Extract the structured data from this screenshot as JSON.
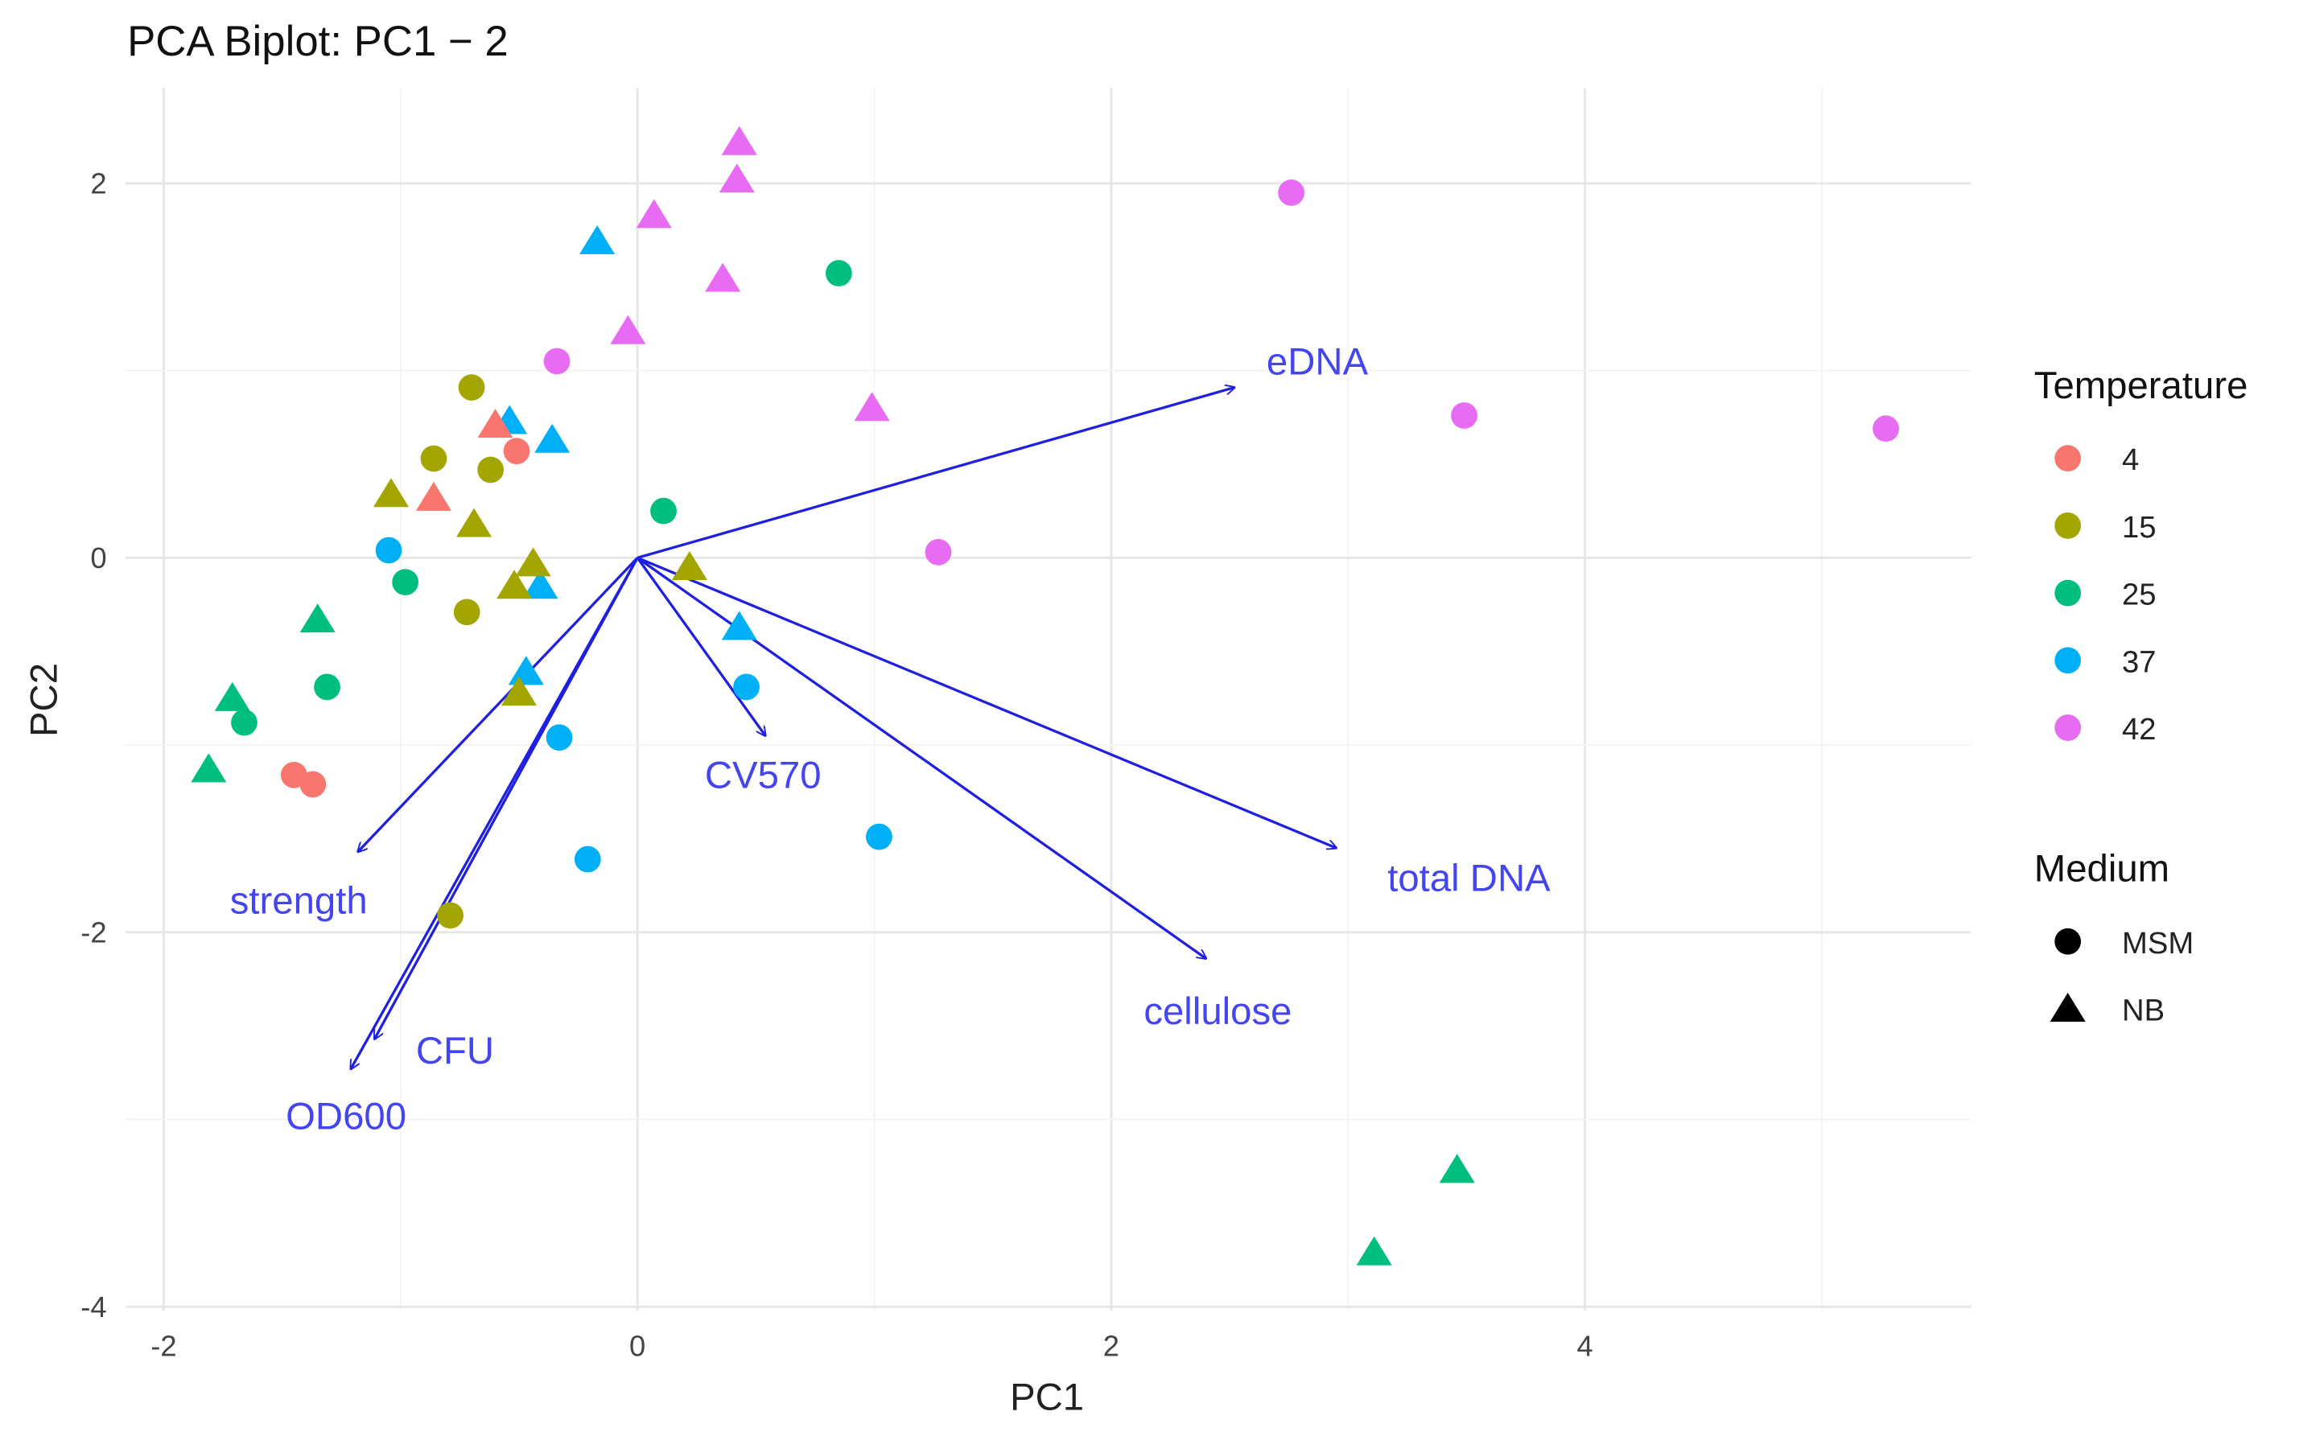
{
  "chart_data": {
    "type": "scatter",
    "title": "PCA Biplot: PC1 − 2",
    "xlabel": "PC1",
    "ylabel": "PC2",
    "xlim": [
      -2.16,
      5.63
    ],
    "ylim": [
      -4.02,
      2.51
    ],
    "xticks": [
      -2,
      0,
      2,
      4
    ],
    "yticks": [
      -4,
      -2,
      0,
      2
    ],
    "grid": true,
    "legend": {
      "placement": "right",
      "color_title": "Temperature",
      "color_entries": [
        {
          "label": "4",
          "color": "#F8766D"
        },
        {
          "label": "15",
          "color": "#A3A500"
        },
        {
          "label": "25",
          "color": "#00BF7D"
        },
        {
          "label": "37",
          "color": "#00B0F6"
        },
        {
          "label": "42",
          "color": "#E76BF3"
        }
      ],
      "shape_title": "Medium",
      "shape_entries": [
        {
          "label": "MSM",
          "shape": "circle"
        },
        {
          "label": "NB",
          "shape": "triangle"
        }
      ]
    },
    "points": [
      {
        "x": 0.43,
        "y": 2.22,
        "temp": "42",
        "medium": "NB"
      },
      {
        "x": 0.42,
        "y": 2.02,
        "temp": "42",
        "medium": "NB"
      },
      {
        "x": 0.07,
        "y": 1.83,
        "temp": "42",
        "medium": "NB"
      },
      {
        "x": 0.36,
        "y": 1.49,
        "temp": "42",
        "medium": "NB"
      },
      {
        "x": -0.04,
        "y": 1.21,
        "temp": "42",
        "medium": "NB"
      },
      {
        "x": 0.99,
        "y": 0.8,
        "temp": "42",
        "medium": "NB"
      },
      {
        "x": 2.76,
        "y": 1.95,
        "temp": "42",
        "medium": "MSM"
      },
      {
        "x": -0.34,
        "y": 1.05,
        "temp": "42",
        "medium": "MSM"
      },
      {
        "x": 3.49,
        "y": 0.76,
        "temp": "42",
        "medium": "MSM"
      },
      {
        "x": 5.27,
        "y": 0.69,
        "temp": "42",
        "medium": "MSM"
      },
      {
        "x": 1.27,
        "y": 0.03,
        "temp": "42",
        "medium": "MSM"
      },
      {
        "x": 0.85,
        "y": 1.52,
        "temp": "25",
        "medium": "MSM"
      },
      {
        "x": 0.11,
        "y": 0.25,
        "temp": "25",
        "medium": "MSM"
      },
      {
        "x": -0.98,
        "y": -0.13,
        "temp": "25",
        "medium": "MSM"
      },
      {
        "x": -1.31,
        "y": -0.69,
        "temp": "25",
        "medium": "MSM"
      },
      {
        "x": -1.66,
        "y": -0.88,
        "temp": "25",
        "medium": "MSM"
      },
      {
        "x": -1.35,
        "y": -0.33,
        "temp": "25",
        "medium": "NB"
      },
      {
        "x": -1.71,
        "y": -0.75,
        "temp": "25",
        "medium": "NB"
      },
      {
        "x": -1.81,
        "y": -1.13,
        "temp": "25",
        "medium": "NB"
      },
      {
        "x": 3.46,
        "y": -3.27,
        "temp": "25",
        "medium": "NB"
      },
      {
        "x": 3.11,
        "y": -3.71,
        "temp": "25",
        "medium": "NB"
      },
      {
        "x": -0.17,
        "y": 1.69,
        "temp": "37",
        "medium": "NB"
      },
      {
        "x": -0.54,
        "y": 0.73,
        "temp": "37",
        "medium": "NB"
      },
      {
        "x": -0.36,
        "y": 0.63,
        "temp": "37",
        "medium": "NB"
      },
      {
        "x": -0.41,
        "y": -0.15,
        "temp": "37",
        "medium": "NB"
      },
      {
        "x": -0.47,
        "y": -0.61,
        "temp": "37",
        "medium": "NB"
      },
      {
        "x": 0.43,
        "y": -0.37,
        "temp": "37",
        "medium": "NB"
      },
      {
        "x": -1.05,
        "y": 0.04,
        "temp": "37",
        "medium": "MSM"
      },
      {
        "x": 0.46,
        "y": -0.69,
        "temp": "37",
        "medium": "MSM"
      },
      {
        "x": -0.33,
        "y": -0.96,
        "temp": "37",
        "medium": "MSM"
      },
      {
        "x": -0.21,
        "y": -1.61,
        "temp": "37",
        "medium": "MSM"
      },
      {
        "x": 1.02,
        "y": -1.49,
        "temp": "37",
        "medium": "MSM"
      },
      {
        "x": -0.7,
        "y": 0.91,
        "temp": "15",
        "medium": "MSM"
      },
      {
        "x": -0.86,
        "y": 0.53,
        "temp": "15",
        "medium": "MSM"
      },
      {
        "x": -0.62,
        "y": 0.47,
        "temp": "15",
        "medium": "MSM"
      },
      {
        "x": -0.72,
        "y": -0.29,
        "temp": "15",
        "medium": "MSM"
      },
      {
        "x": -0.79,
        "y": -1.91,
        "temp": "15",
        "medium": "MSM"
      },
      {
        "x": -1.04,
        "y": 0.34,
        "temp": "15",
        "medium": "NB"
      },
      {
        "x": -0.69,
        "y": 0.18,
        "temp": "15",
        "medium": "NB"
      },
      {
        "x": -0.44,
        "y": -0.03,
        "temp": "15",
        "medium": "NB"
      },
      {
        "x": -0.52,
        "y": -0.15,
        "temp": "15",
        "medium": "NB"
      },
      {
        "x": 0.22,
        "y": -0.05,
        "temp": "15",
        "medium": "NB"
      },
      {
        "x": -0.5,
        "y": -0.72,
        "temp": "15",
        "medium": "NB"
      },
      {
        "x": -0.6,
        "y": 0.71,
        "temp": "4",
        "medium": "NB"
      },
      {
        "x": -0.86,
        "y": 0.32,
        "temp": "4",
        "medium": "NB"
      },
      {
        "x": -0.51,
        "y": 0.57,
        "temp": "4",
        "medium": "MSM"
      },
      {
        "x": -1.45,
        "y": -1.16,
        "temp": "4",
        "medium": "MSM"
      },
      {
        "x": -1.37,
        "y": -1.21,
        "temp": "4",
        "medium": "MSM"
      }
    ],
    "loadings": [
      {
        "name": "eDNA",
        "x": 2.52,
        "y": 0.91,
        "label_x": 2.87,
        "label_y": 1.05
      },
      {
        "name": "total DNA",
        "x": 2.95,
        "y": -1.55,
        "label_x": 3.51,
        "label_y": -1.71
      },
      {
        "name": "cellulose",
        "x": 2.4,
        "y": -2.14,
        "label_x": 2.45,
        "label_y": -2.42
      },
      {
        "name": "CV570",
        "x": 0.54,
        "y": -0.95,
        "label_x": 0.53,
        "label_y": -1.16
      },
      {
        "name": "strength",
        "x": -1.18,
        "y": -1.57,
        "label_x": -1.43,
        "label_y": -1.83
      },
      {
        "name": "CFU",
        "x": -1.11,
        "y": -2.57,
        "label_x": -0.77,
        "label_y": -2.63
      },
      {
        "name": "OD600",
        "x": -1.21,
        "y": -2.73,
        "label_x": -1.23,
        "label_y": -2.98
      }
    ],
    "arrow_color": "#1F1FE0",
    "arrow_label_color": "#4545F0"
  }
}
